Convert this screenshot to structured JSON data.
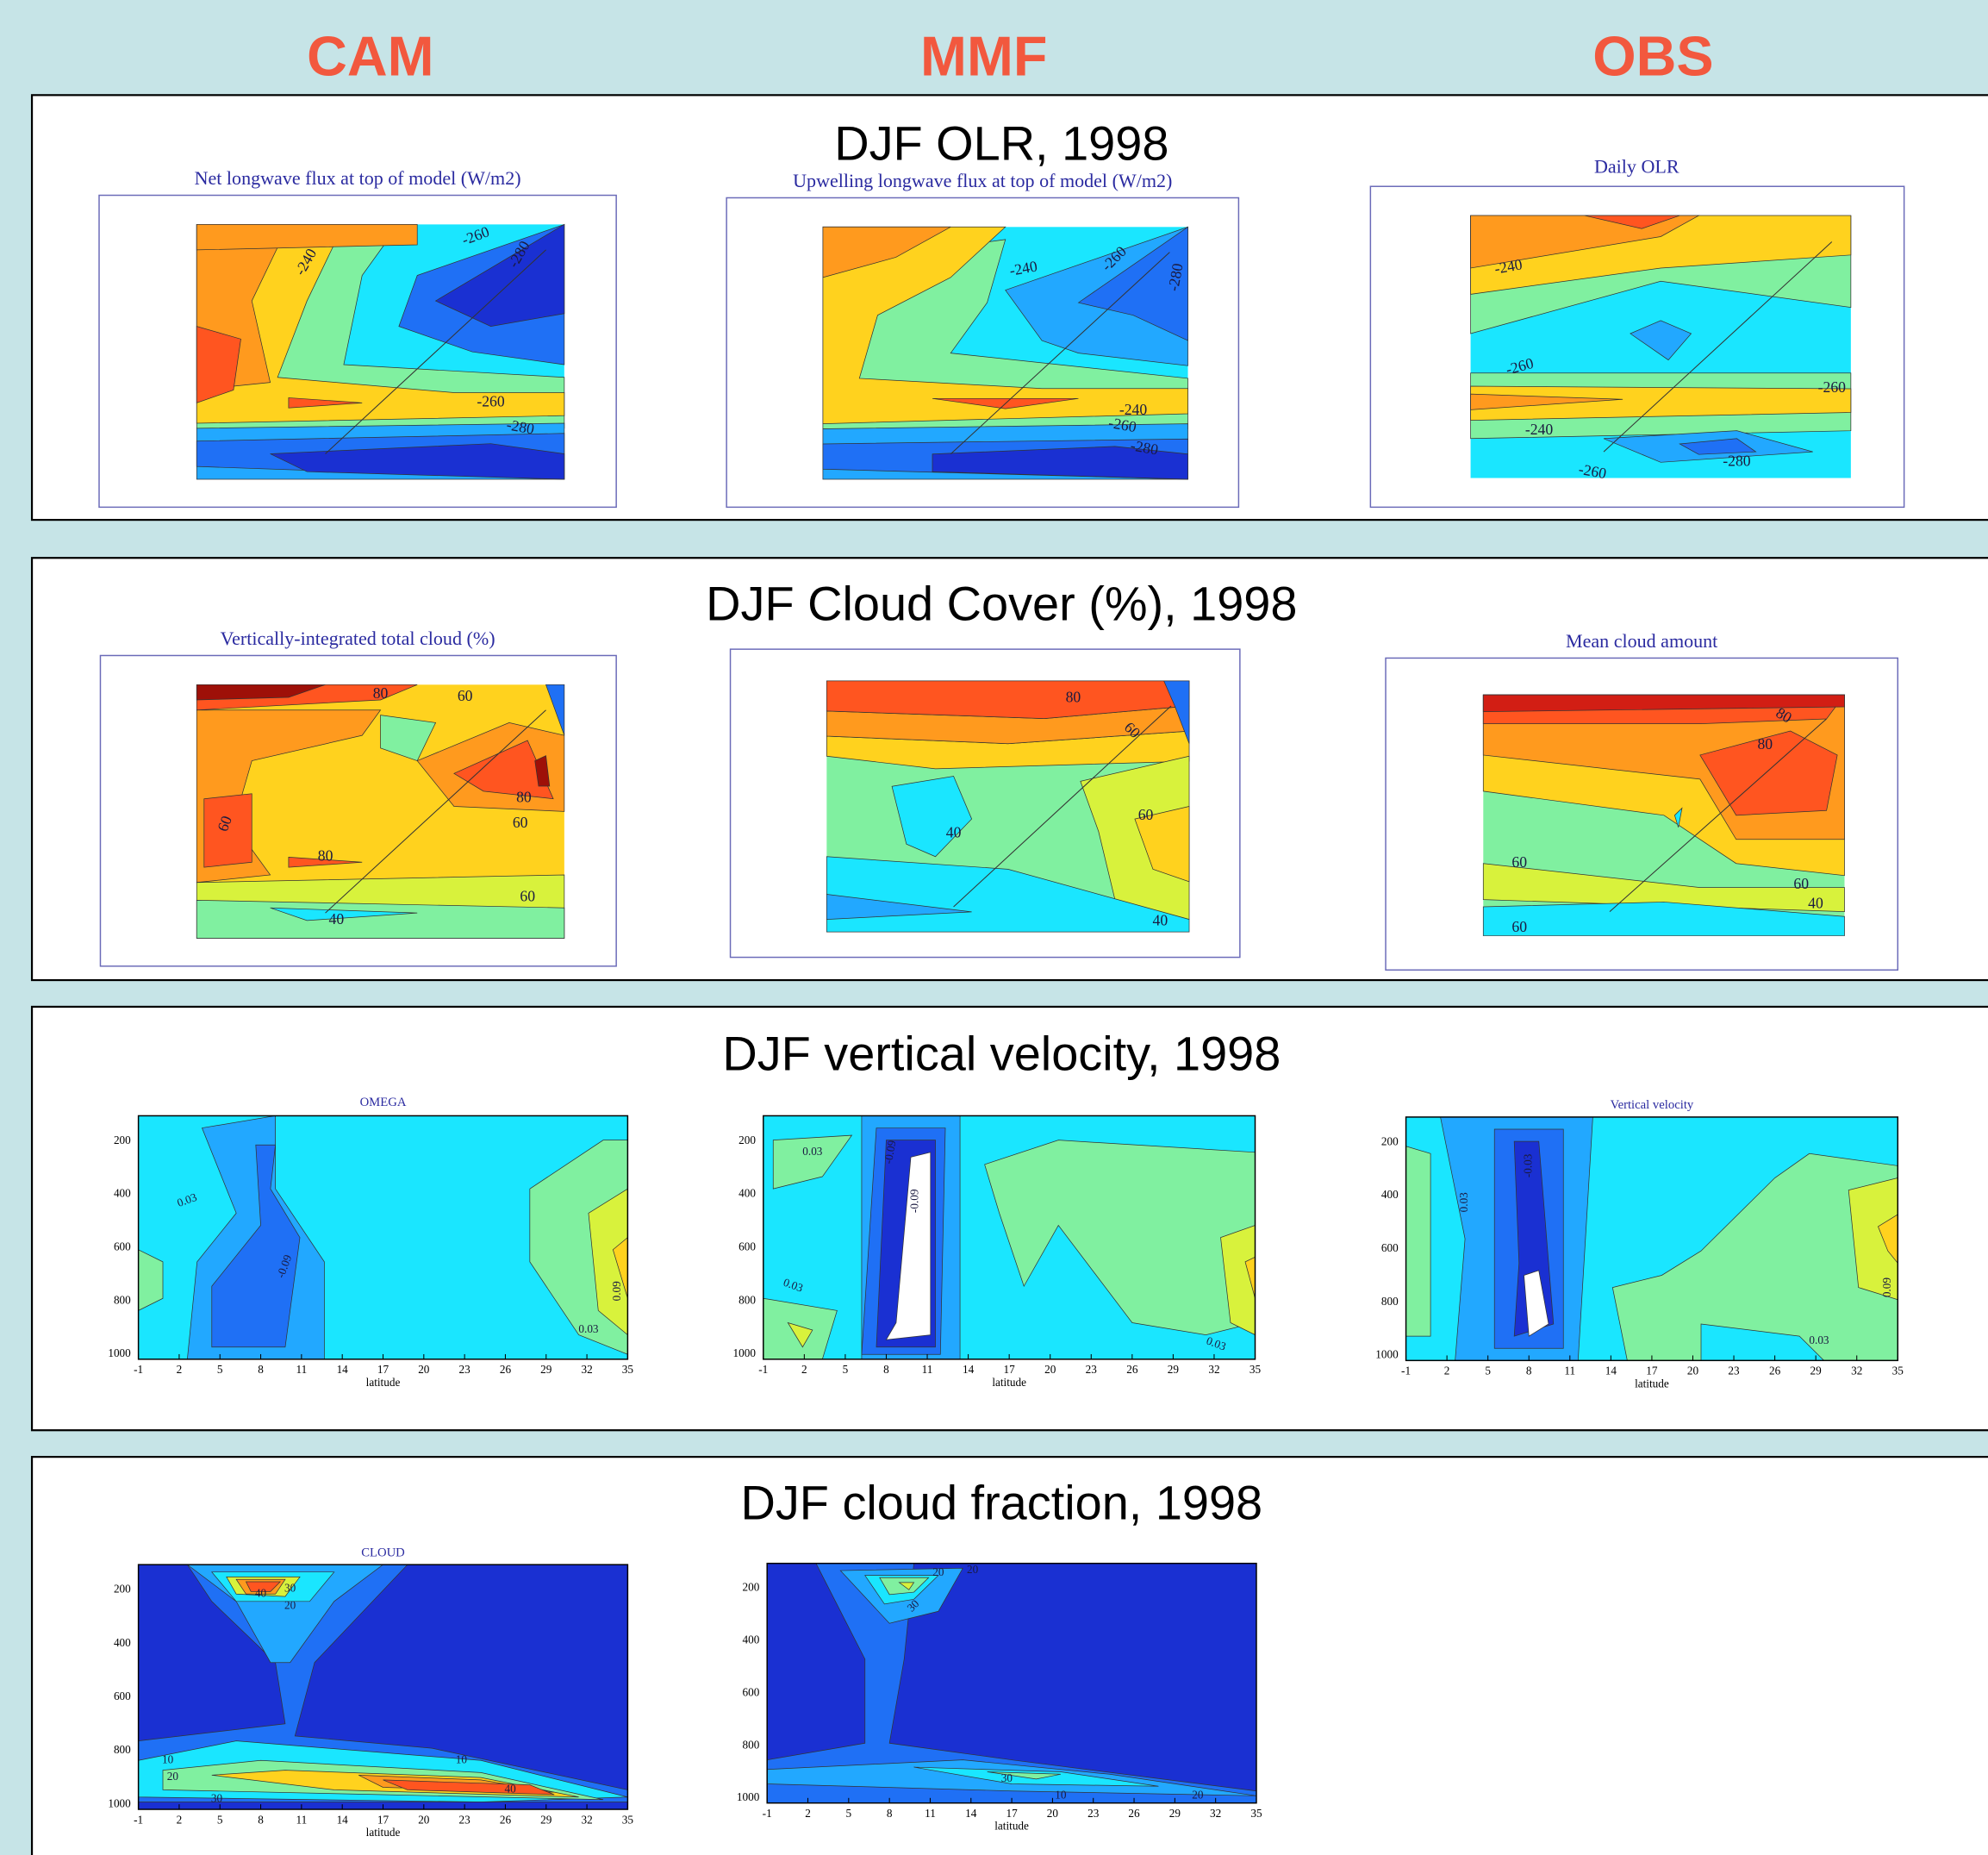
{
  "header": {
    "columns": [
      "CAM",
      "MMF",
      "OBS"
    ]
  },
  "panels": [
    {
      "title": "DJF OLR, 1998",
      "plots": [
        {
          "title": "Net longwave flux at top of model (W/m2)",
          "contour_labels": [
            "-240",
            "-260",
            "-280",
            "-260",
            "-280"
          ]
        },
        {
          "title": "Upwelling longwave flux at top of model (W/m2)",
          "contour_labels": [
            "-240",
            "-260",
            "-280",
            "-240",
            "-260",
            "-280"
          ]
        },
        {
          "title": "Daily OLR",
          "contour_labels": [
            "-240",
            "-260",
            "-260",
            "-240",
            "-260",
            "-280"
          ]
        }
      ]
    },
    {
      "title": "DJF Cloud Cover (%), 1998",
      "plots": [
        {
          "title": "Vertically-integrated total cloud (%)",
          "contour_labels": [
            "80",
            "60",
            "60",
            "80",
            "60",
            "80",
            "60",
            "40"
          ]
        },
        {
          "contour_labels": [
            "80",
            "60",
            "40",
            "60",
            "40"
          ]
        },
        {
          "title": "Mean cloud amount",
          "contour_labels": [
            "80",
            "80",
            "60",
            "60",
            "40",
            "60"
          ]
        }
      ]
    },
    {
      "title": "DJF vertical velocity, 1998",
      "axis": {
        "yticks": [
          "200",
          "400",
          "600",
          "800",
          "1000"
        ],
        "xticks": [
          "-1",
          "2",
          "5",
          "8",
          "11",
          "14",
          "17",
          "20",
          "23",
          "26",
          "29",
          "32",
          "35"
        ],
        "xlabel": "latitude"
      },
      "plots": [
        {
          "title": "OMEGA",
          "contour_labels": [
            "0.03",
            "-0.09",
            "0.09",
            "0.03"
          ]
        },
        {
          "contour_labels": [
            "0.03",
            "-0.09",
            "-0.09",
            "0.03",
            "0.03"
          ]
        },
        {
          "title": "Vertical velocity",
          "contour_labels": [
            "0.03",
            "-0.03",
            "0.09",
            "0.03"
          ]
        }
      ]
    },
    {
      "title": "DJF cloud fraction, 1998",
      "axis": {
        "yticks": [
          "200",
          "400",
          "600",
          "800",
          "1000"
        ],
        "xticks": [
          "-1",
          "2",
          "5",
          "8",
          "11",
          "14",
          "17",
          "20",
          "23",
          "26",
          "29",
          "32",
          "35"
        ],
        "xlabel": "latitude"
      },
      "plots": [
        {
          "title": "CLOUD",
          "contour_labels": [
            "30",
            "40",
            "20",
            "10",
            "20",
            "30",
            "10",
            "40"
          ]
        },
        {
          "contour_labels": [
            "20",
            "30",
            "20",
            "30",
            "10",
            "20"
          ]
        }
      ]
    }
  ]
}
